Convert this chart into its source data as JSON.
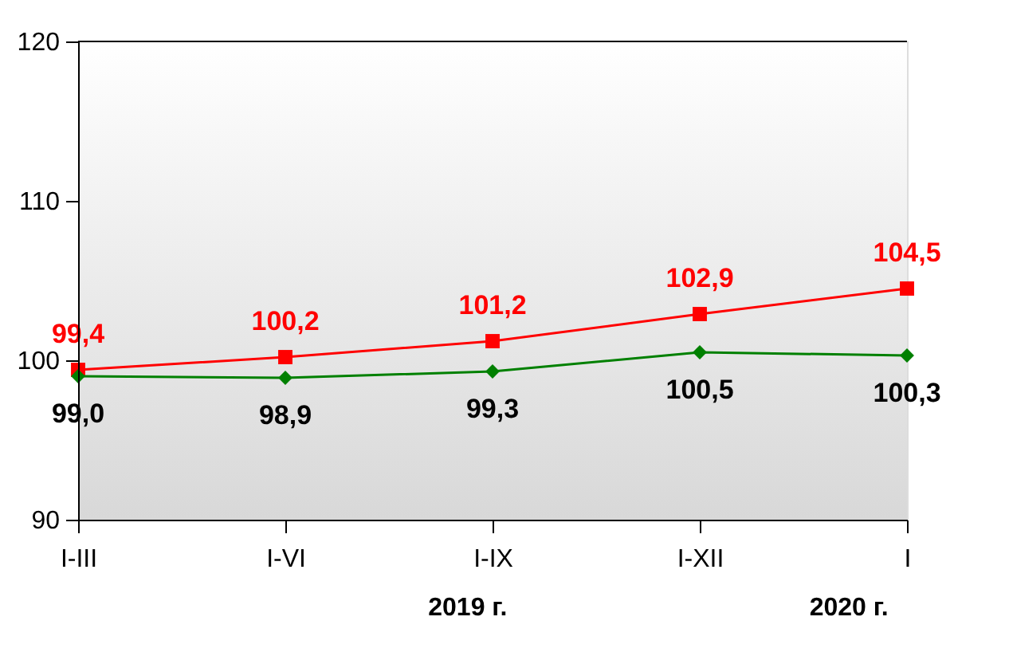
{
  "chart_data": {
    "type": "line",
    "categories": [
      "I-III",
      "I-VI",
      "I-IX",
      "I-XII",
      "I"
    ],
    "series": [
      {
        "color": "#ff0000",
        "marker": "square",
        "values": [
          99.4,
          100.2,
          101.2,
          102.9,
          104.5
        ],
        "value_labels": [
          "99,4",
          "100,2",
          "101,2",
          "102,9",
          "104,5"
        ]
      },
      {
        "color": "#008000",
        "marker": "diamond",
        "values": [
          99.0,
          98.9,
          99.3,
          100.5,
          100.3
        ],
        "value_labels": [
          "99,0",
          "98,9",
          "99,3",
          "100,5",
          "100,3"
        ]
      }
    ],
    "ylim": [
      90,
      120
    ],
    "yticks": [
      90,
      100,
      110,
      120
    ],
    "grid": false,
    "annotations": [
      "2019 г.",
      "2020 г."
    ]
  }
}
